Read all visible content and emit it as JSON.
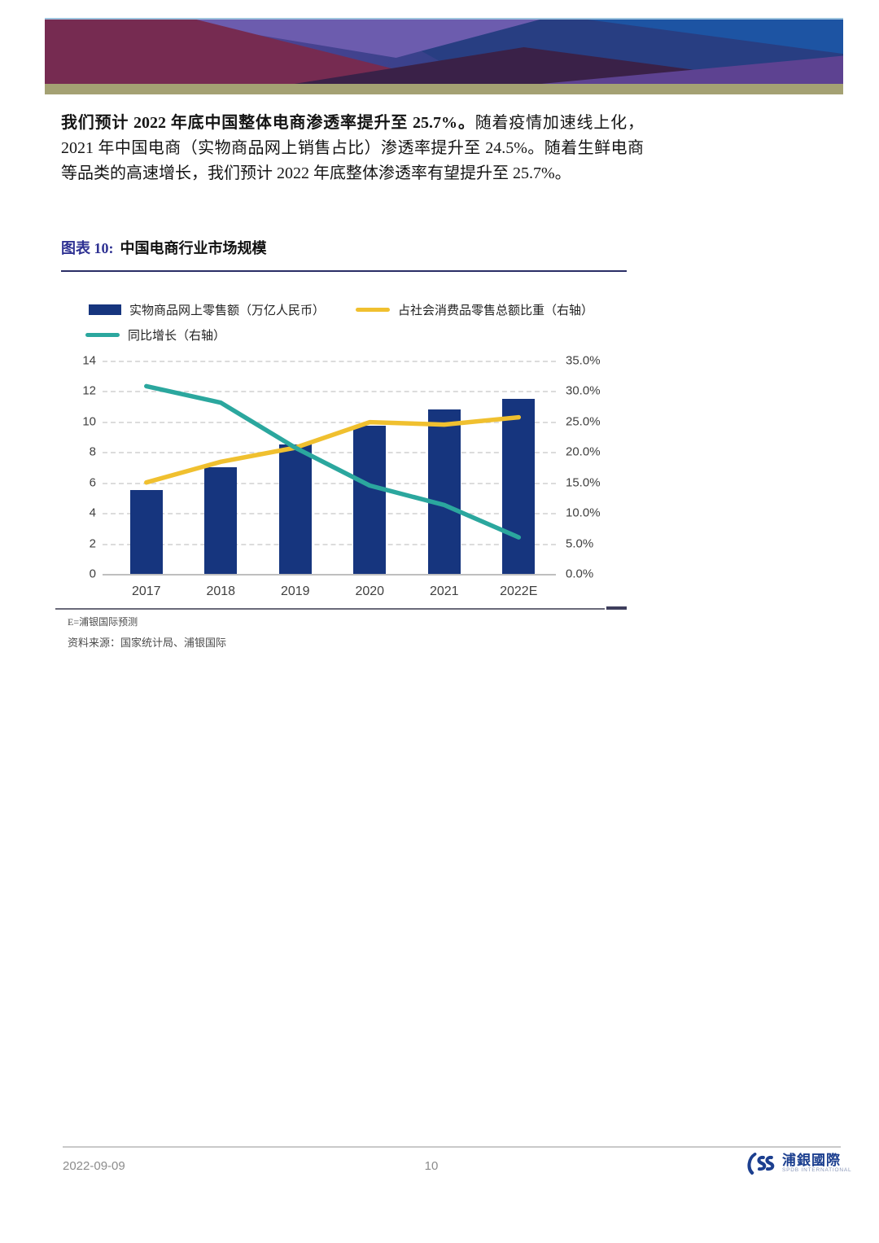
{
  "paragraph": {
    "bold": "我们预计 2022 年底中国整体电商渗透率提升至 25.7%。",
    "regular": "随着疫情加速线上化，2021 年中国电商（实物商品网上销售占比）渗透率提升至 24.5%。随着生鲜电商等品类的高速增长，我们预计 2022 年底整体渗透率有望提升至 25.7%。"
  },
  "figure": {
    "label": "图表 10:",
    "title": "中国电商行业市场规模",
    "note_estimate": "E=浦银国际预测",
    "note_source": "资料来源：国家统计局、浦银国际"
  },
  "colors": {
    "bar": "#16357E",
    "ratio_line": "#F0C02F",
    "growth_line": "#2BA79E",
    "accent": "#2E3192",
    "logo": "#1C3F8F"
  },
  "chart_data": {
    "type": "bar",
    "subtype": "bar + two right-axis lines",
    "categories": [
      "2017",
      "2018",
      "2019",
      "2020",
      "2021",
      "2022E"
    ],
    "series": [
      {
        "name": "实物商品网上零售额（万亿人民币）",
        "type": "bar",
        "axis": "left",
        "values": [
          5.5,
          7.0,
          8.5,
          9.7,
          10.8,
          11.5
        ]
      },
      {
        "name": "占社会消费品零售总额比重（右轴）",
        "type": "line",
        "axis": "right",
        "values": [
          15.0,
          18.4,
          20.7,
          24.9,
          24.5,
          25.7
        ]
      },
      {
        "name": "同比增长（右轴）",
        "type": "line",
        "axis": "right",
        "values": [
          30.8,
          28.1,
          20.7,
          14.5,
          11.3,
          6.0
        ]
      }
    ],
    "left_axis": {
      "min": 0,
      "max": 14,
      "ticks": [
        "14",
        "12",
        "10",
        "8",
        "6",
        "4",
        "2",
        "0"
      ]
    },
    "right_axis": {
      "min": 0,
      "max": 35,
      "ticks": [
        "35.0%",
        "30.0%",
        "25.0%",
        "20.0%",
        "15.0%",
        "10.0%",
        "5.0%",
        "0.0%"
      ]
    },
    "grid": "horizontal dashed",
    "legend_position": "top-left, two rows"
  },
  "footer": {
    "date": "2022-09-09",
    "page": "10",
    "logo_cn": "浦銀國際",
    "logo_en": "SPDB INTERNATIONAL"
  }
}
